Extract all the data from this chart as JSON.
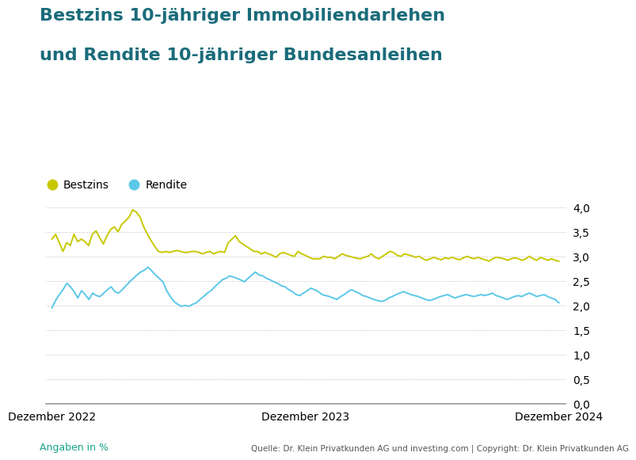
{
  "title_line1": "Bestzins 10-jähriger Immobiliendarlehen",
  "title_line2": "und Rendite 10-jähriger Bundesanleihen",
  "title_color": "#1a6b7a",
  "title_fontsize": 16,
  "legend_bestzins": "Bestzins",
  "legend_rendite": "Rendite",
  "xlabel_ticks": [
    "Dezember 2022",
    "Dezember 2023",
    "Dezember 2024"
  ],
  "ylim": [
    0.0,
    4.25
  ],
  "yticks": [
    0.0,
    0.5,
    1.0,
    1.5,
    2.0,
    2.5,
    3.0,
    3.5,
    4.0
  ],
  "source_text": "Quelle: Dr. Klein Privatkunden AG und investing.com | Copyright: Dr. Klein Privatkunden AG",
  "angaben_text": "Angaben in %",
  "angaben_color": "#17a589",
  "background_color": "#ffffff",
  "bestzins_color": "#c8c800",
  "rendite_color": "#5bc8e8",
  "grid_color": "#bbbbbb",
  "bestzins": [
    3.35,
    3.45,
    3.28,
    3.1,
    3.28,
    3.22,
    3.45,
    3.3,
    3.35,
    3.3,
    3.22,
    3.45,
    3.52,
    3.38,
    3.25,
    3.42,
    3.55,
    3.6,
    3.5,
    3.65,
    3.72,
    3.8,
    3.95,
    3.9,
    3.8,
    3.6,
    3.45,
    3.32,
    3.2,
    3.1,
    3.08,
    3.1,
    3.08,
    3.1,
    3.12,
    3.1,
    3.08,
    3.08,
    3.1,
    3.1,
    3.08,
    3.05,
    3.08,
    3.1,
    3.05,
    3.08,
    3.1,
    3.08,
    3.28,
    3.35,
    3.42,
    3.3,
    3.25,
    3.2,
    3.15,
    3.1,
    3.1,
    3.05,
    3.08,
    3.05,
    3.02,
    2.98,
    3.05,
    3.08,
    3.05,
    3.02,
    3.0,
    3.1,
    3.05,
    3.02,
    2.98,
    2.95,
    2.95,
    2.95,
    3.0,
    2.98,
    2.98,
    2.95,
    3.0,
    3.05,
    3.02,
    3.0,
    2.98,
    2.96,
    2.95,
    2.98,
    3.0,
    3.05,
    2.98,
    2.95,
    3.0,
    3.05,
    3.1,
    3.08,
    3.02,
    3.0,
    3.05,
    3.03,
    3.01,
    2.98,
    3.0,
    2.95,
    2.92,
    2.95,
    2.98,
    2.95,
    2.93,
    2.97,
    2.95,
    2.98,
    2.95,
    2.93,
    2.97,
    3.0,
    2.97,
    2.95,
    2.98,
    2.95,
    2.93,
    2.9,
    2.95,
    2.98,
    2.97,
    2.95,
    2.92,
    2.95,
    2.97,
    2.95,
    2.92,
    2.95,
    3.0,
    2.95,
    2.92,
    2.98,
    2.95,
    2.92,
    2.95,
    2.92,
    2.9
  ],
  "rendite": [
    1.95,
    2.1,
    2.22,
    2.32,
    2.45,
    2.38,
    2.28,
    2.15,
    2.3,
    2.22,
    2.12,
    2.25,
    2.2,
    2.18,
    2.25,
    2.32,
    2.38,
    2.28,
    2.25,
    2.32,
    2.4,
    2.48,
    2.55,
    2.62,
    2.68,
    2.72,
    2.78,
    2.7,
    2.62,
    2.55,
    2.48,
    2.3,
    2.18,
    2.08,
    2.02,
    1.98,
    2.0,
    1.98,
    2.02,
    2.05,
    2.12,
    2.18,
    2.25,
    2.3,
    2.38,
    2.45,
    2.52,
    2.55,
    2.6,
    2.58,
    2.55,
    2.52,
    2.48,
    2.55,
    2.62,
    2.68,
    2.62,
    2.6,
    2.55,
    2.52,
    2.48,
    2.45,
    2.4,
    2.38,
    2.32,
    2.28,
    2.22,
    2.2,
    2.25,
    2.3,
    2.35,
    2.32,
    2.28,
    2.22,
    2.2,
    2.18,
    2.15,
    2.12,
    2.18,
    2.22,
    2.28,
    2.32,
    2.28,
    2.25,
    2.2,
    2.18,
    2.15,
    2.12,
    2.1,
    2.08,
    2.1,
    2.15,
    2.18,
    2.22,
    2.25,
    2.28,
    2.25,
    2.22,
    2.2,
    2.18,
    2.15,
    2.12,
    2.1,
    2.12,
    2.15,
    2.18,
    2.2,
    2.22,
    2.18,
    2.15,
    2.18,
    2.2,
    2.22,
    2.2,
    2.18,
    2.2,
    2.22,
    2.2,
    2.22,
    2.25,
    2.2,
    2.18,
    2.15,
    2.12,
    2.15,
    2.18,
    2.2,
    2.18,
    2.22,
    2.25,
    2.22,
    2.18,
    2.2,
    2.22,
    2.18,
    2.15,
    2.12,
    2.05
  ]
}
